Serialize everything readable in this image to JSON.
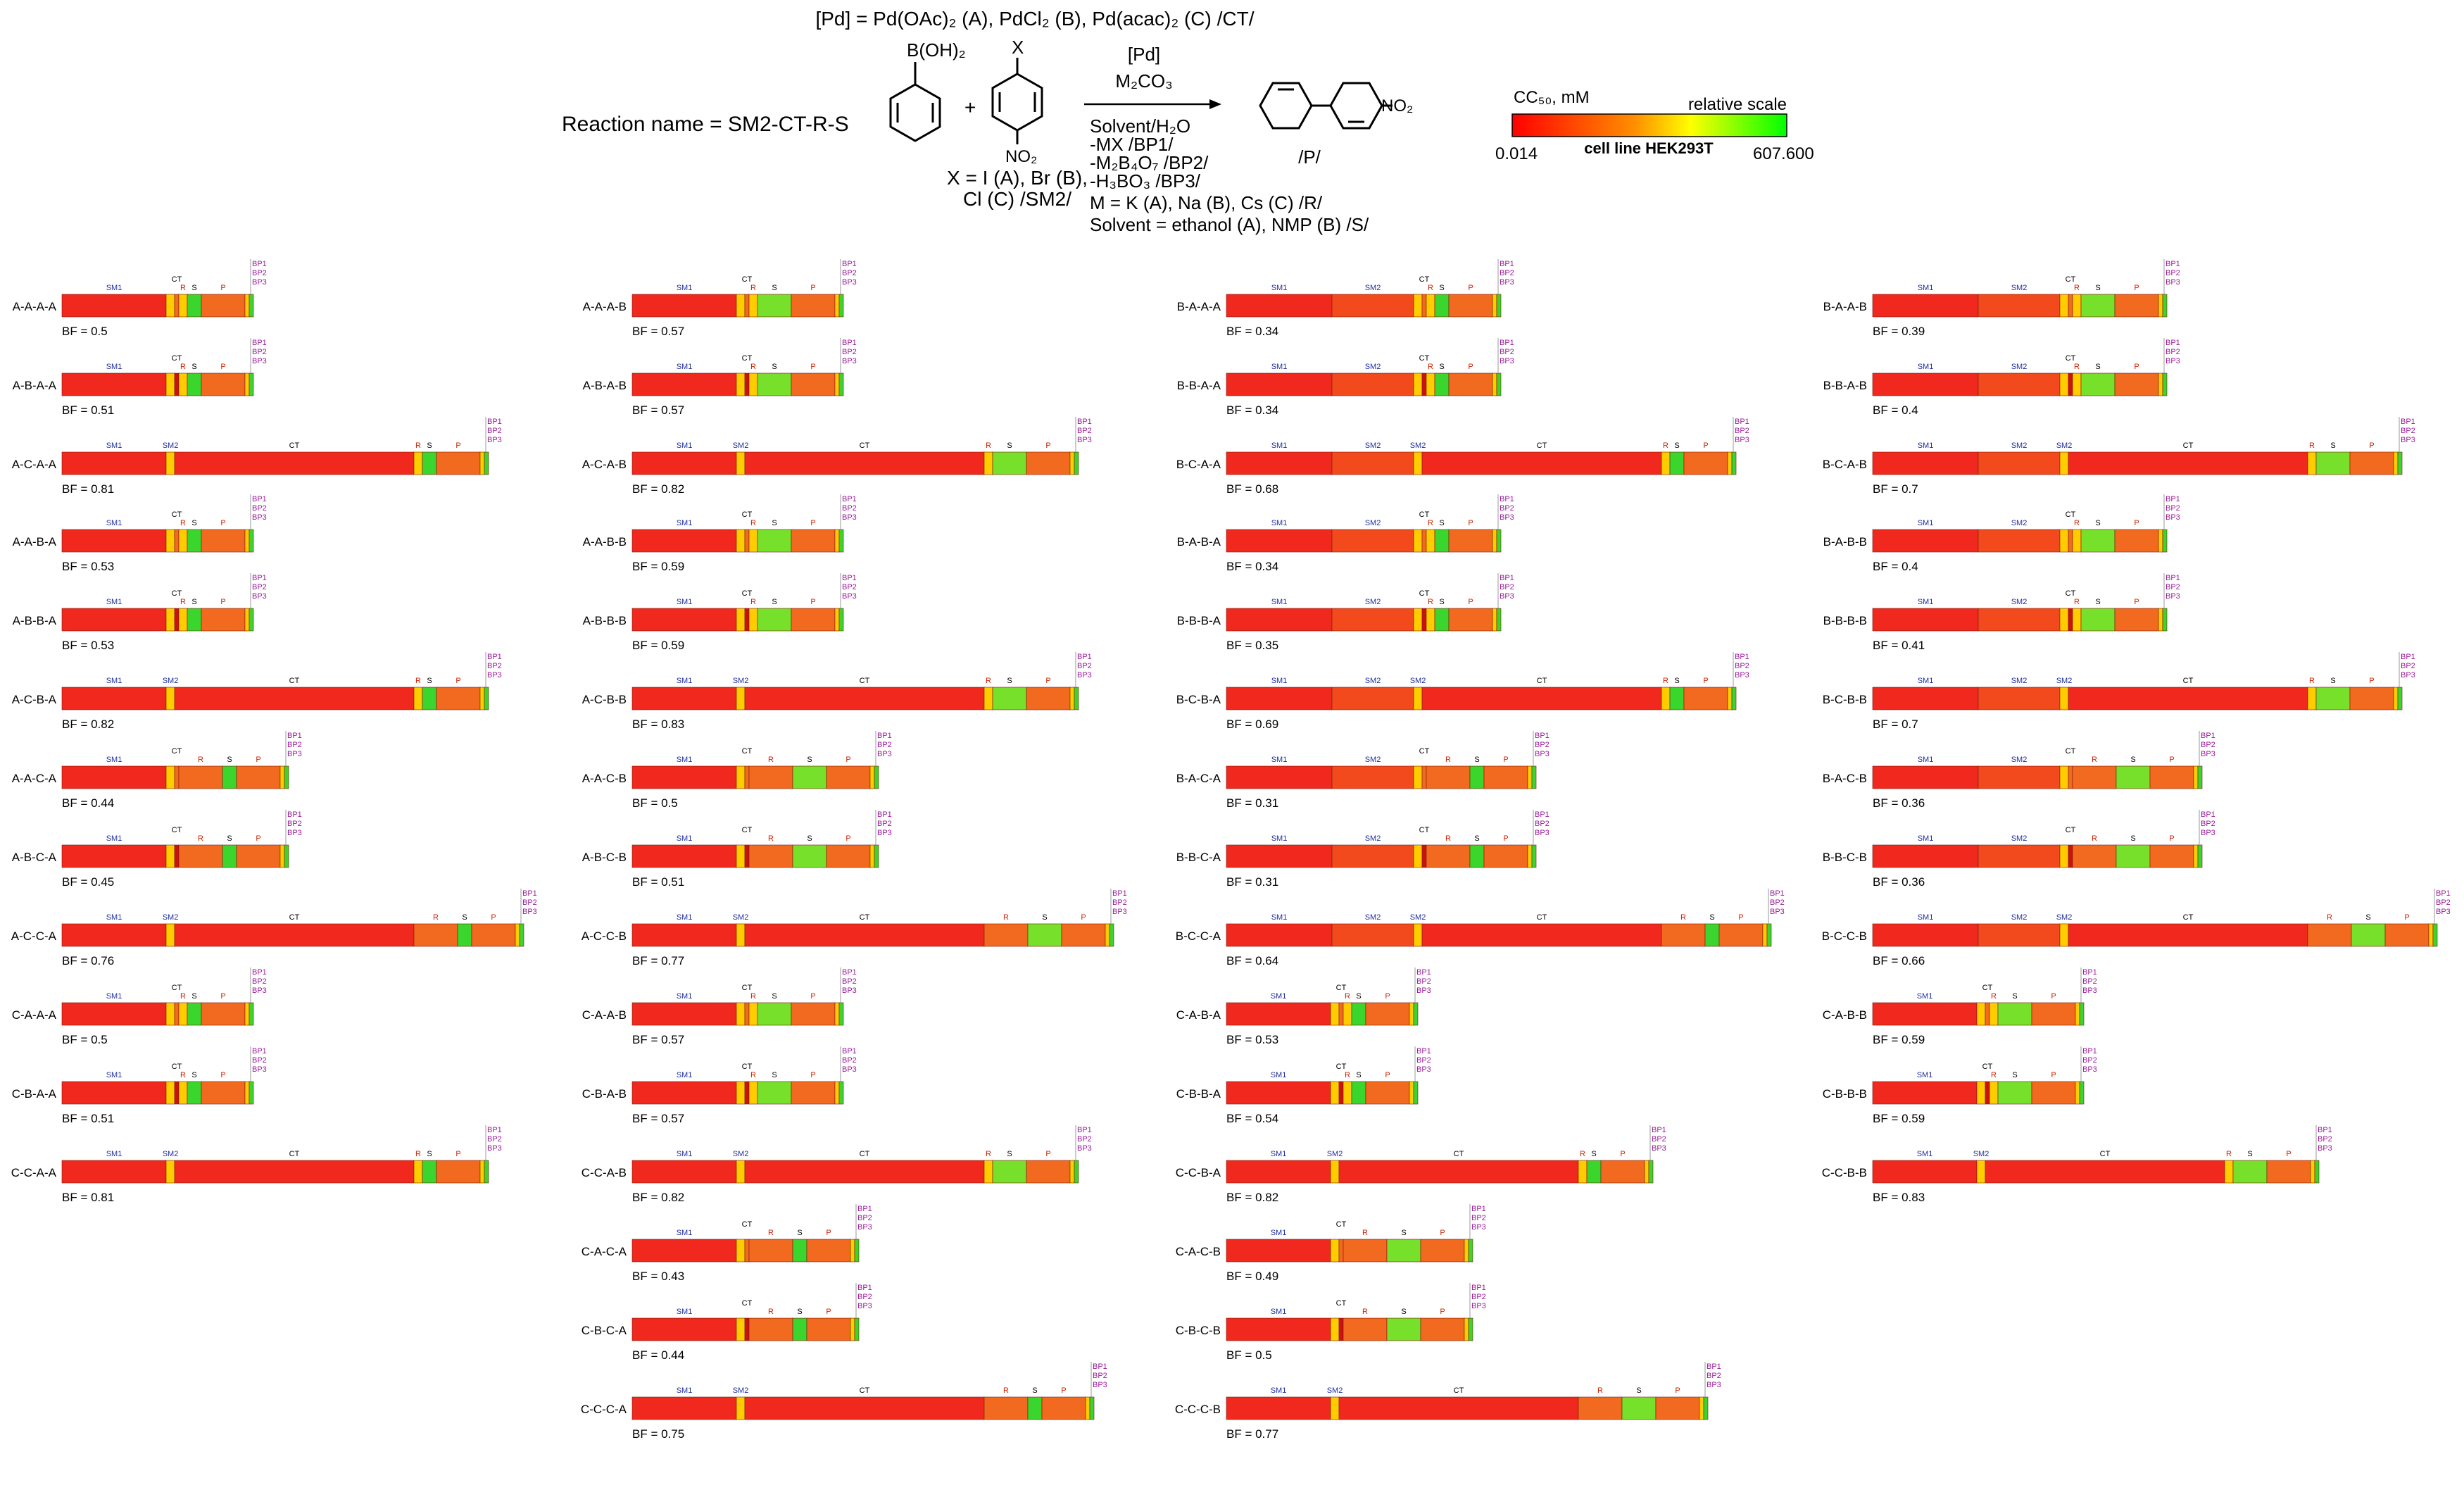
{
  "header": {
    "catalyst_line": "[Pd] = Pd(OAc)₂ (A), PdCl₂ (B), Pd(acac)₂ (C) /CT/",
    "reaction_name": "Reaction name = SM2-CT-R-S",
    "sm1_label": "B(OH)₂",
    "plus": "+",
    "sm2_top": "X",
    "sm2_bottom": "NO₂",
    "sm2_caption": [
      "X = I (A), Br (B),",
      "Cl (C) /SM2/"
    ],
    "arrow_top": [
      "[Pd]",
      "M₂CO₃"
    ],
    "conditions": [
      "Solvent/H₂O",
      "-MX /BP1/",
      "-M₂B₄O₇ /BP2/",
      "-H₃BO₃ /BP3/",
      "M = K (A), Na (B), Cs (C) /R/",
      "Solvent = ethanol (A), NMP (B) /S/"
    ],
    "product_group": "NO₂",
    "product_label": "/P/"
  },
  "legend": {
    "title": "CC₅₀, mM",
    "scale_label": "relative scale",
    "min": "0.014",
    "max": "607.600",
    "cell_line": "cell line HEK293T",
    "colors": [
      "#ff0000",
      "#ff8000",
      "#ffff00",
      "#00ff00"
    ]
  },
  "colors": {
    "red": "#f0281e",
    "redorange": "#f24a1d",
    "orange": "#f26a1f",
    "darkred": "#cc1111",
    "yellow": "#ffcc00",
    "lightgreen": "#77e02a",
    "green": "#3ad52d",
    "blue_label": "#1f2f9f",
    "red_label": "#cc2200",
    "purple_label": "#9a1a9a"
  },
  "segment_labels": {
    "SM1": "SM1",
    "SM2": "SM2",
    "CT": "CT",
    "R": "R",
    "S": "S",
    "P": "P",
    "BP1": "BP1",
    "BP2": "BP2",
    "BP3": "BP3"
  },
  "bf_prefix": "BF = ",
  "routes": [
    {
      "name": "A-A-A-A",
      "bf": "0.5"
    },
    {
      "name": "A-B-A-A",
      "bf": "0.51"
    },
    {
      "name": "A-C-A-A",
      "bf": "0.81"
    },
    {
      "name": "A-A-B-A",
      "bf": "0.53"
    },
    {
      "name": "A-B-B-A",
      "bf": "0.53"
    },
    {
      "name": "A-C-B-A",
      "bf": "0.82"
    },
    {
      "name": "A-A-C-A",
      "bf": "0.44"
    },
    {
      "name": "A-B-C-A",
      "bf": "0.45"
    },
    {
      "name": "A-C-C-A",
      "bf": "0.76"
    },
    {
      "name": "C-A-A-A",
      "bf": "0.5"
    },
    {
      "name": "C-B-A-A",
      "bf": "0.51"
    },
    {
      "name": "C-C-A-A",
      "bf": "0.81"
    },
    {
      "name": "A-A-A-B",
      "bf": "0.57"
    },
    {
      "name": "A-B-A-B",
      "bf": "0.57"
    },
    {
      "name": "A-C-A-B",
      "bf": "0.82"
    },
    {
      "name": "A-A-B-B",
      "bf": "0.59"
    },
    {
      "name": "A-B-B-B",
      "bf": "0.59"
    },
    {
      "name": "A-C-B-B",
      "bf": "0.83"
    },
    {
      "name": "A-A-C-B",
      "bf": "0.5"
    },
    {
      "name": "A-B-C-B",
      "bf": "0.51"
    },
    {
      "name": "A-C-C-B",
      "bf": "0.77"
    },
    {
      "name": "C-A-A-B",
      "bf": "0.57"
    },
    {
      "name": "C-B-A-B",
      "bf": "0.57"
    },
    {
      "name": "C-C-A-B",
      "bf": "0.82"
    },
    {
      "name": "C-A-C-A",
      "bf": "0.43"
    },
    {
      "name": "C-B-C-A",
      "bf": "0.44"
    },
    {
      "name": "C-C-C-A",
      "bf": "0.75"
    },
    {
      "name": "B-A-A-A",
      "bf": "0.34"
    },
    {
      "name": "B-B-A-A",
      "bf": "0.34"
    },
    {
      "name": "B-C-A-A",
      "bf": "0.68"
    },
    {
      "name": "B-A-B-A",
      "bf": "0.34"
    },
    {
      "name": "B-B-B-A",
      "bf": "0.35"
    },
    {
      "name": "B-C-B-A",
      "bf": "0.69"
    },
    {
      "name": "B-A-C-A",
      "bf": "0.31"
    },
    {
      "name": "B-B-C-A",
      "bf": "0.31"
    },
    {
      "name": "B-C-C-A",
      "bf": "0.64"
    },
    {
      "name": "C-A-B-A",
      "bf": "0.53"
    },
    {
      "name": "C-B-B-A",
      "bf": "0.54"
    },
    {
      "name": "C-C-B-A",
      "bf": "0.82"
    },
    {
      "name": "C-A-C-B",
      "bf": "0.49"
    },
    {
      "name": "C-B-C-B",
      "bf": "0.5"
    },
    {
      "name": "C-C-C-B",
      "bf": "0.77"
    },
    {
      "name": "B-A-A-B",
      "bf": "0.39"
    },
    {
      "name": "B-B-A-B",
      "bf": "0.4"
    },
    {
      "name": "B-C-A-B",
      "bf": "0.7"
    },
    {
      "name": "B-A-B-B",
      "bf": "0.4"
    },
    {
      "name": "B-B-B-B",
      "bf": "0.41"
    },
    {
      "name": "B-C-B-B",
      "bf": "0.7"
    },
    {
      "name": "B-A-C-B",
      "bf": "0.36"
    },
    {
      "name": "B-B-C-B",
      "bf": "0.36"
    },
    {
      "name": "B-C-C-B",
      "bf": "0.66"
    },
    {
      "name": "C-A-B-B",
      "bf": "0.59"
    },
    {
      "name": "C-B-B-B",
      "bf": "0.59"
    },
    {
      "name": "C-C-B-B",
      "bf": "0.83"
    }
  ]
}
